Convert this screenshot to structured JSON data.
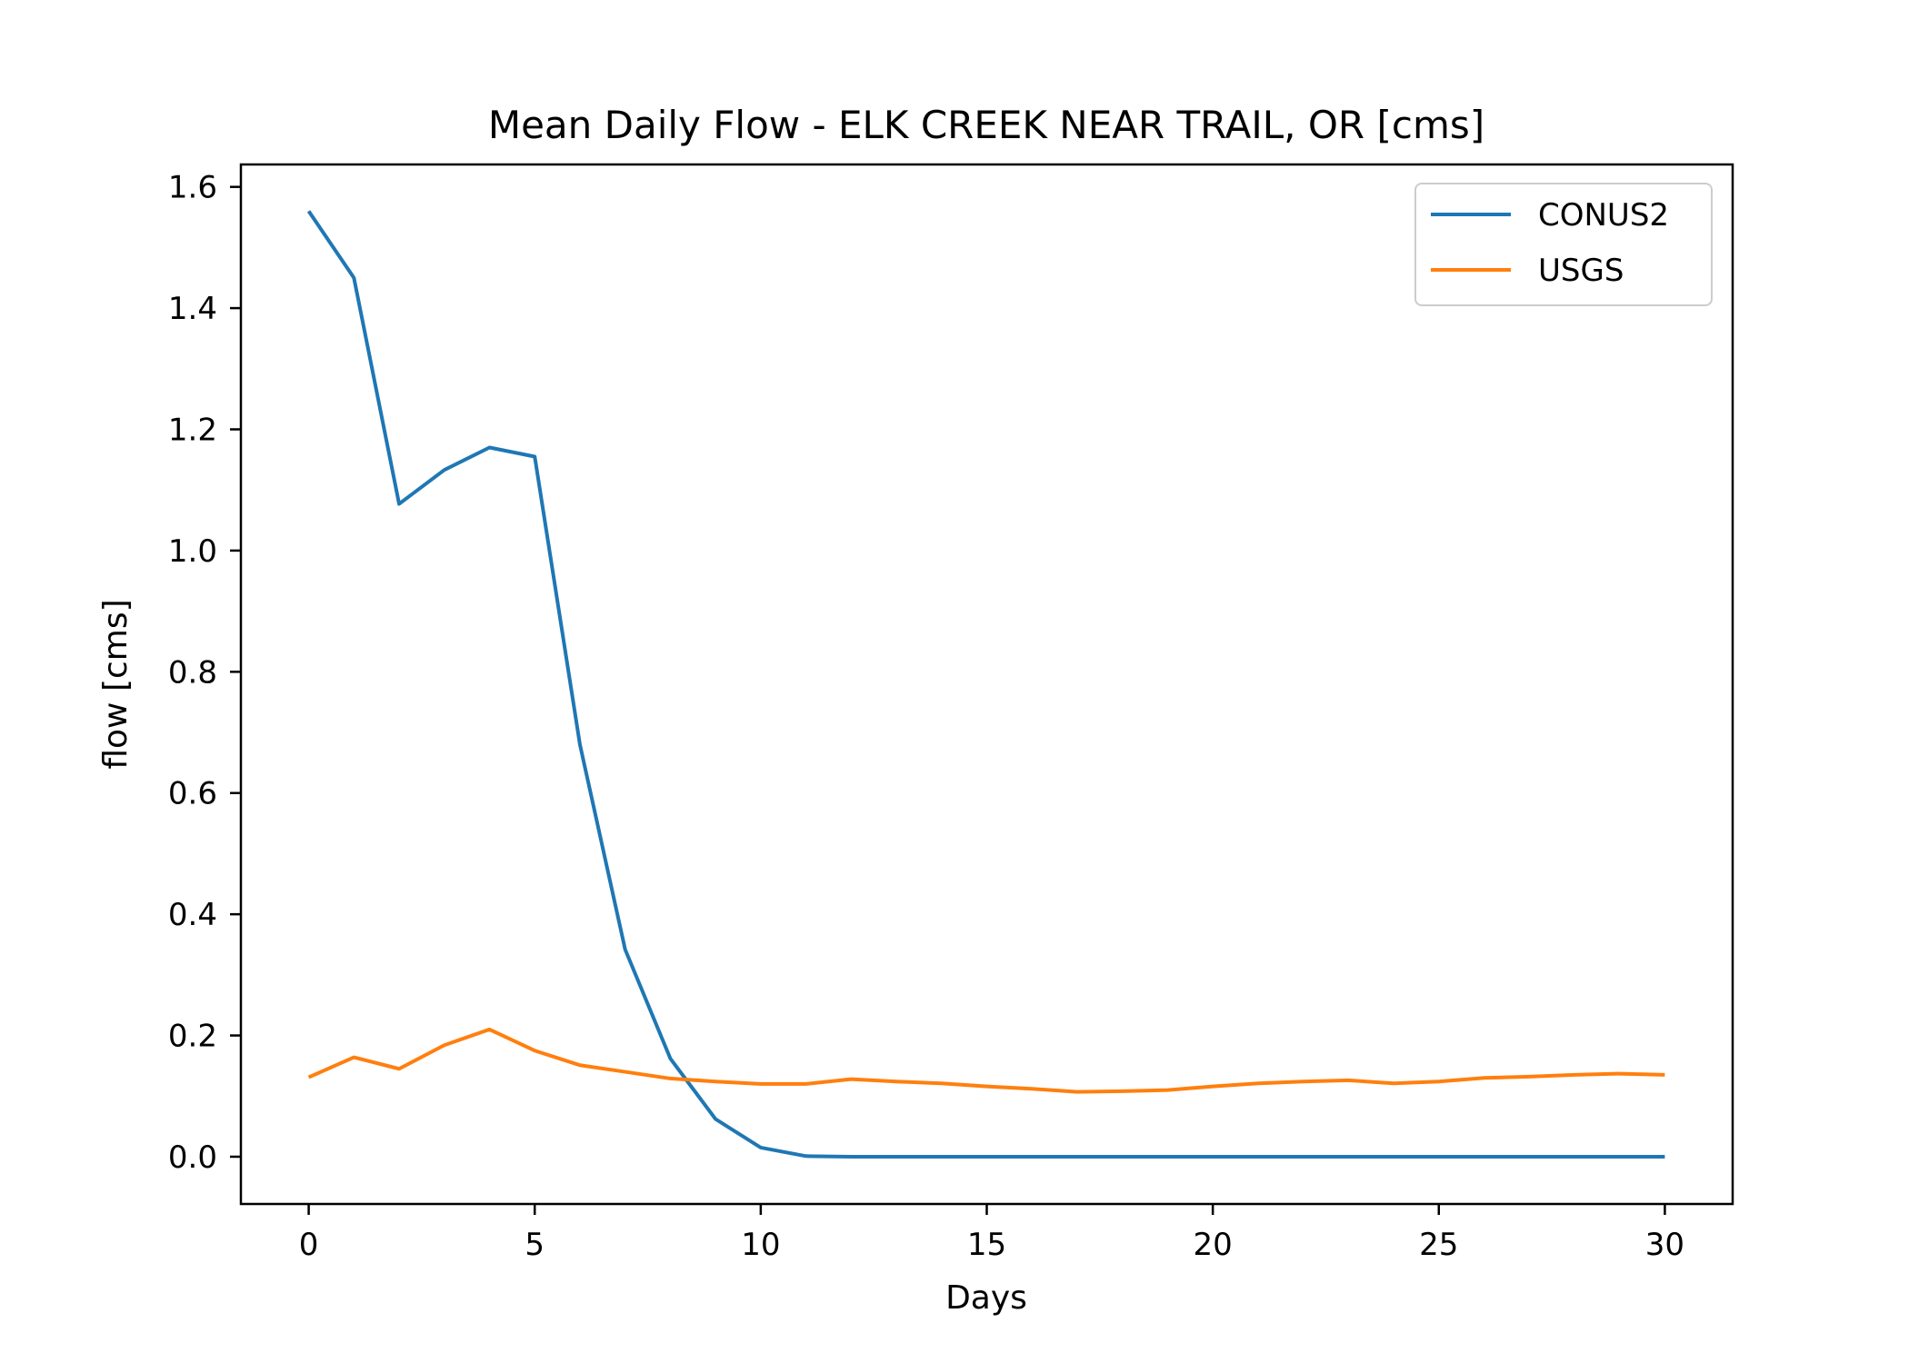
{
  "chart_data": {
    "type": "line",
    "title": "Mean Daily Flow - ELK CREEK NEAR TRAIL, OR [cms]",
    "xlabel": "Days",
    "ylabel": "flow [cms]",
    "xlim": [
      -1.5,
      31.5
    ],
    "ylim": [
      -0.078,
      1.637
    ],
    "xticks": [
      0,
      5,
      10,
      15,
      20,
      25,
      30
    ],
    "yticks": [
      0.0,
      0.2,
      0.4,
      0.6,
      0.8,
      1.0,
      1.2,
      1.4,
      1.6
    ],
    "ytick_labels": [
      "0.0",
      "0.2",
      "0.4",
      "0.6",
      "0.8",
      "1.0",
      "1.2",
      "1.4",
      "1.6"
    ],
    "grid": false,
    "legend_position": "upper right",
    "x": [
      0,
      1,
      2,
      3,
      4,
      5,
      6,
      7,
      8,
      9,
      10,
      11,
      12,
      13,
      14,
      15,
      16,
      17,
      18,
      19,
      20,
      21,
      22,
      23,
      24,
      25,
      26,
      27,
      28,
      29,
      30
    ],
    "series": [
      {
        "name": "CONUS2",
        "color": "#1f77b4",
        "values": [
          1.56,
          1.45,
          1.077,
          1.133,
          1.17,
          1.155,
          0.68,
          0.342,
          0.162,
          0.062,
          0.015,
          0.001,
          0.0,
          0.0,
          0.0,
          0.0,
          0.0,
          0.0,
          0.0,
          0.0,
          0.0,
          0.0,
          0.0,
          0.0,
          0.0,
          0.0,
          0.0,
          0.0,
          0.0,
          0.0,
          0.0
        ]
      },
      {
        "name": "USGS",
        "color": "#ff7f0e",
        "values": [
          0.131,
          0.164,
          0.145,
          0.184,
          0.21,
          0.175,
          0.151,
          0.14,
          0.129,
          0.124,
          0.12,
          0.12,
          0.128,
          0.124,
          0.121,
          0.116,
          0.112,
          0.107,
          0.108,
          0.11,
          0.116,
          0.121,
          0.124,
          0.126,
          0.121,
          0.124,
          0.13,
          0.132,
          0.135,
          0.137,
          0.135
        ]
      }
    ]
  }
}
